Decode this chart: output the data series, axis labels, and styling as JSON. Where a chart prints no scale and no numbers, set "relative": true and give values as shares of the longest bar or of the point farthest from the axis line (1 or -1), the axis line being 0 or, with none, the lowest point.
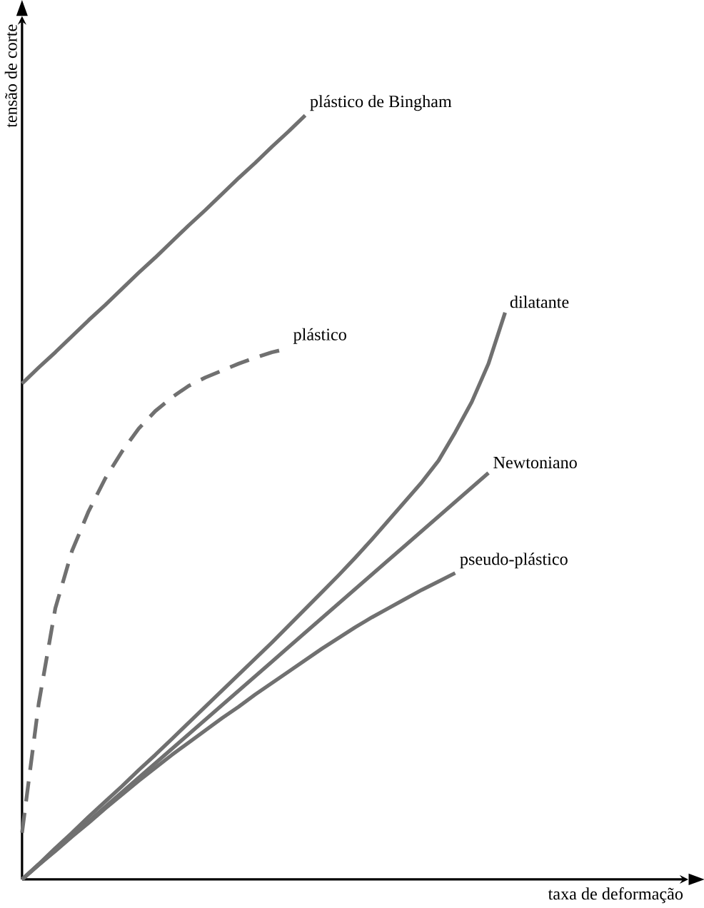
{
  "chart_data": {
    "type": "line",
    "relative": true,
    "xlabel": "taxa de deformação",
    "ylabel": "tensão de corte",
    "legend": false,
    "categories": [
      null,
      null,
      null,
      null,
      null,
      null,
      null,
      null,
      null,
      null,
      null,
      null,
      null,
      null,
      null,
      null,
      null,
      null,
      null,
      null,
      null,
      null,
      null,
      null,
      null,
      null,
      null,
      null,
      null,
      null,
      null,
      null,
      null,
      null,
      null,
      null,
      null,
      null,
      null,
      null,
      null
    ],
    "series": [
      {
        "name": "plástico de Bingham",
        "color": "#707070",
        "values": [
          0.649,
          0.67,
          0.69,
          0.711,
          0.732,
          0.752,
          0.773,
          0.794,
          0.814,
          0.835,
          0.856,
          0.876,
          0.897,
          0.918,
          0.938,
          0.959,
          0.979,
          1.0,
          null,
          null,
          null,
          null,
          null,
          null,
          null,
          null,
          null,
          null,
          null,
          null,
          null,
          null,
          null,
          null,
          null,
          null,
          null,
          null,
          null,
          null,
          null
        ]
      },
      {
        "name": "plástico",
        "color": "#707070",
        "line_style": "dashed",
        "values": [
          0.061,
          0.23,
          0.355,
          0.43,
          0.482,
          0.525,
          0.56,
          0.59,
          0.613,
          0.631,
          0.646,
          0.657,
          0.666,
          0.675,
          0.683,
          0.69,
          0.695,
          null,
          null,
          null,
          null,
          null,
          null,
          null,
          null,
          null,
          null,
          null,
          null,
          null,
          null,
          null,
          null,
          null,
          null,
          null,
          null,
          null,
          null,
          null,
          null
        ]
      },
      {
        "name": "dilatante",
        "color": "#707070",
        "values": [
          0,
          0.02,
          0.041,
          0.061,
          0.082,
          0.102,
          0.122,
          0.143,
          0.163,
          0.184,
          0.205,
          0.226,
          0.247,
          0.268,
          0.289,
          0.31,
          0.332,
          0.354,
          0.376,
          0.398,
          0.421,
          0.445,
          0.47,
          0.495,
          0.52,
          0.548,
          0.585,
          0.625,
          0.675,
          0.742,
          null,
          null,
          null,
          null,
          null,
          null,
          null,
          null,
          null,
          null,
          null
        ]
      },
      {
        "name": "Newtoniano",
        "color": "#707070",
        "values": [
          0,
          0.019,
          0.038,
          0.057,
          0.076,
          0.095,
          0.114,
          0.133,
          0.152,
          0.171,
          0.19,
          0.209,
          0.228,
          0.247,
          0.266,
          0.285,
          0.304,
          0.323,
          0.342,
          0.361,
          0.38,
          0.399,
          0.418,
          0.437,
          0.456,
          0.475,
          0.494,
          0.513,
          0.532,
          null,
          null,
          null,
          null,
          null,
          null,
          null,
          null,
          null,
          null,
          null,
          null
        ]
      },
      {
        "name": "pseudo-plástico",
        "color": "#707070",
        "values": [
          0,
          0.019,
          0.037,
          0.056,
          0.074,
          0.093,
          0.111,
          0.129,
          0.146,
          0.163,
          0.179,
          0.195,
          0.211,
          0.226,
          0.242,
          0.257,
          0.272,
          0.287,
          0.302,
          0.316,
          0.33,
          0.343,
          0.355,
          0.367,
          0.379,
          0.39,
          0.401,
          null,
          null,
          null,
          null,
          null,
          null,
          null,
          null,
          null,
          null,
          null,
          null,
          null,
          null
        ]
      }
    ]
  }
}
